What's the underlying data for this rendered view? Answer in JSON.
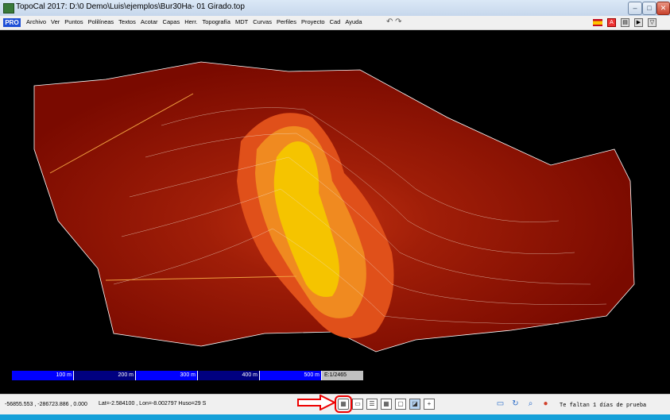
{
  "window": {
    "title": "TopoCal 2017: D:\\0 Demo\\Luis\\ejemplos\\Bur30Ha- 01 Girado.top"
  },
  "menu": {
    "badge": "PRO",
    "items": [
      "Archivo",
      "Ver",
      "Puntos",
      "Polilíneas",
      "Textos",
      "Acotar",
      "Capas",
      "Herr.",
      "Topografía",
      "MDT",
      "Curvas",
      "Perfiles",
      "Proyecto",
      "Cad",
      "Ayuda"
    ],
    "undo": "↶",
    "redo": "↷"
  },
  "scale_bar": {
    "labels": [
      "100 m",
      "200 m",
      "300 m",
      "400 m",
      "500 m"
    ],
    "ratio": "E:1/2465"
  },
  "status": {
    "coords": "-56855.553 , -286723.886 , 0.000",
    "latlon": "Lat=-2.584100 , Lon=-8.002797  Huso=29 S",
    "trial": "Te faltan 1 días de prueba"
  },
  "colors": {
    "terrain_dark": "#7a0a00",
    "terrain_mid": "#b02a10",
    "peak": "#f5c400",
    "scale_blue": "#0000ff"
  },
  "icons": [
    "grid-icon",
    "layer-icon",
    "table-icon",
    "image-icon",
    "cursor-icon",
    "monitor-icon",
    "zoom-icon",
    "user-icon"
  ]
}
